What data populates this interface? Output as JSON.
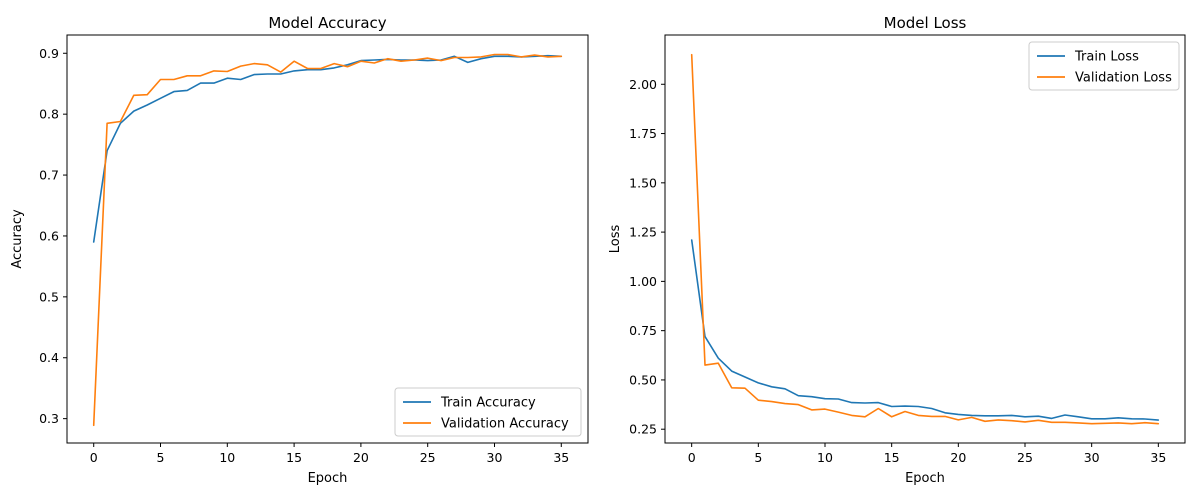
{
  "colors": {
    "train": "#1f77b4",
    "validation": "#ff7f0e",
    "axes": "#000000",
    "legend_border": "#cccccc"
  },
  "chart_data": [
    {
      "type": "line",
      "title": "Model Accuracy",
      "xlabel": "Epoch",
      "ylabel": "Accuracy",
      "xlim": [
        -2,
        37
      ],
      "ylim": [
        0.26,
        0.93
      ],
      "xticks": [
        0,
        5,
        10,
        15,
        20,
        25,
        30,
        35
      ],
      "yticks": [
        0.3,
        0.4,
        0.5,
        0.6,
        0.7,
        0.8,
        0.9
      ],
      "ytick_labels": [
        "0.3",
        "0.4",
        "0.5",
        "0.6",
        "0.7",
        "0.8",
        "0.9"
      ],
      "legend_position": "lower-right",
      "grid": false,
      "x": [
        0,
        1,
        2,
        3,
        4,
        5,
        6,
        7,
        8,
        9,
        10,
        11,
        12,
        13,
        14,
        15,
        16,
        17,
        18,
        19,
        20,
        21,
        22,
        23,
        24,
        25,
        26,
        27,
        28,
        29,
        30,
        31,
        32,
        33,
        34,
        35
      ],
      "series": [
        {
          "name": "Train Accuracy",
          "color": "#1f77b4",
          "values": [
            0.59,
            0.74,
            0.785,
            0.805,
            0.815,
            0.826,
            0.837,
            0.839,
            0.851,
            0.851,
            0.859,
            0.857,
            0.865,
            0.866,
            0.866,
            0.871,
            0.873,
            0.873,
            0.876,
            0.881,
            0.888,
            0.889,
            0.89,
            0.889,
            0.889,
            0.888,
            0.889,
            0.895,
            0.885,
            0.891,
            0.895,
            0.895,
            0.894,
            0.895,
            0.896,
            0.895
          ]
        },
        {
          "name": "Validation Accuracy",
          "color": "#ff7f0e",
          "values": [
            0.289,
            0.785,
            0.788,
            0.831,
            0.832,
            0.857,
            0.857,
            0.863,
            0.863,
            0.871,
            0.87,
            0.879,
            0.883,
            0.881,
            0.869,
            0.887,
            0.875,
            0.875,
            0.883,
            0.878,
            0.887,
            0.884,
            0.891,
            0.887,
            0.889,
            0.892,
            0.888,
            0.893,
            0.893,
            0.894,
            0.898,
            0.898,
            0.894,
            0.897,
            0.894,
            0.895
          ]
        }
      ]
    },
    {
      "type": "line",
      "title": "Model Loss",
      "xlabel": "Epoch",
      "ylabel": "Loss",
      "xlim": [
        -2,
        37
      ],
      "ylim": [
        0.18,
        2.25
      ],
      "xticks": [
        0,
        5,
        10,
        15,
        20,
        25,
        30,
        35
      ],
      "yticks": [
        0.25,
        0.5,
        0.75,
        1.0,
        1.25,
        1.5,
        1.75,
        2.0
      ],
      "ytick_labels": [
        "0.25",
        "0.50",
        "0.75",
        "1.00",
        "1.25",
        "1.50",
        "1.75",
        "2.00"
      ],
      "legend_position": "upper-right",
      "grid": false,
      "x": [
        0,
        1,
        2,
        3,
        4,
        5,
        6,
        7,
        8,
        9,
        10,
        11,
        12,
        13,
        14,
        15,
        16,
        17,
        18,
        19,
        20,
        21,
        22,
        23,
        24,
        25,
        26,
        27,
        28,
        29,
        30,
        31,
        32,
        33,
        34,
        35
      ],
      "series": [
        {
          "name": "Train Loss",
          "color": "#1f77b4",
          "values": [
            1.21,
            0.72,
            0.61,
            0.545,
            0.515,
            0.485,
            0.465,
            0.455,
            0.42,
            0.415,
            0.405,
            0.403,
            0.385,
            0.383,
            0.385,
            0.365,
            0.367,
            0.365,
            0.355,
            0.333,
            0.325,
            0.32,
            0.318,
            0.318,
            0.32,
            0.313,
            0.316,
            0.305,
            0.322,
            0.313,
            0.303,
            0.303,
            0.308,
            0.303,
            0.302,
            0.296
          ]
        },
        {
          "name": "Validation Loss",
          "color": "#ff7f0e",
          "values": [
            2.15,
            0.575,
            0.585,
            0.46,
            0.458,
            0.397,
            0.39,
            0.38,
            0.375,
            0.348,
            0.352,
            0.337,
            0.32,
            0.313,
            0.355,
            0.313,
            0.34,
            0.32,
            0.315,
            0.315,
            0.297,
            0.31,
            0.29,
            0.297,
            0.293,
            0.287,
            0.295,
            0.285,
            0.285,
            0.282,
            0.278,
            0.28,
            0.282,
            0.278,
            0.283,
            0.278
          ]
        }
      ]
    }
  ]
}
